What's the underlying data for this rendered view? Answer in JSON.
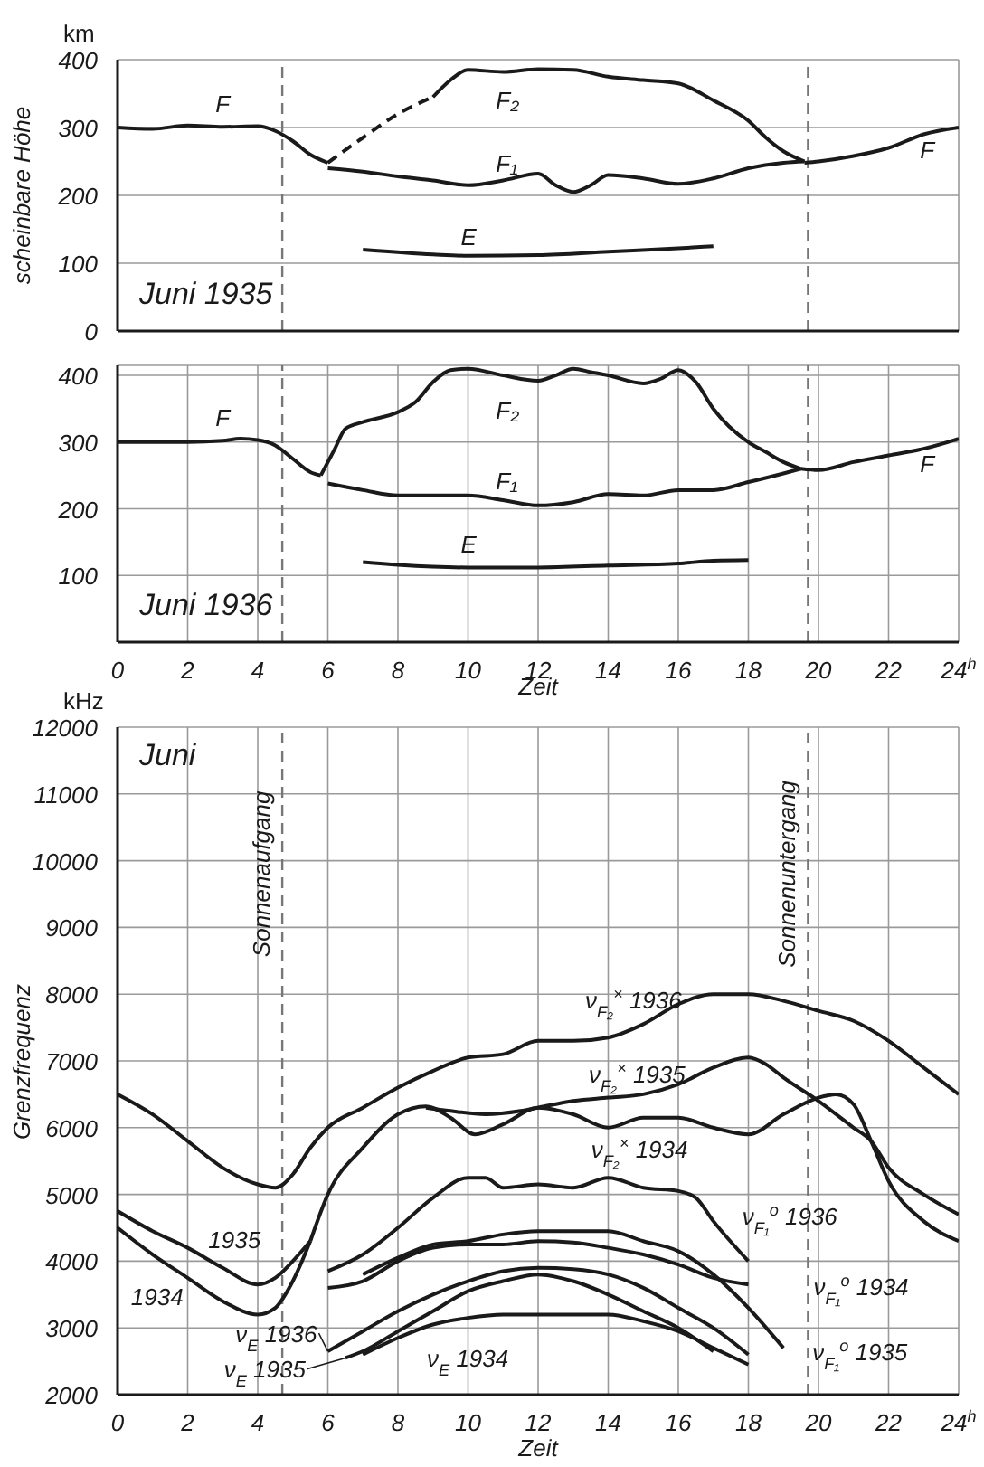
{
  "chart_data": [
    {
      "type": "line",
      "title": "Juni 1935",
      "ylabel": "scheinbare Höhe",
      "xlim": [
        0,
        24
      ],
      "ylim": [
        0,
        400
      ],
      "xticks": [
        0,
        2,
        4,
        6,
        8,
        10,
        12,
        14,
        16,
        18,
        20,
        22,
        24
      ],
      "yticks": [
        0,
        100,
        200,
        300,
        400
      ],
      "tick_labels": "y",
      "grid": true,
      "ref_lines": [
        {
          "axis": "x",
          "value": 4.7,
          "line_style": "dashed"
        },
        {
          "axis": "x",
          "value": 19.7,
          "line_style": "dashed"
        }
      ],
      "series": [
        {
          "color": "#1a1a1a",
          "x": [
            0,
            1,
            2,
            3,
            4,
            4.5,
            5,
            5.5,
            6
          ],
          "values": [
            300,
            298,
            303,
            301,
            302,
            295,
            280,
            260,
            248
          ]
        },
        {
          "color": "#1a1a1a",
          "line_style": "dashed",
          "x": [
            6,
            7,
            8,
            9
          ],
          "values": [
            248,
            285,
            320,
            345
          ]
        },
        {
          "color": "#1a1a1a",
          "x": [
            9,
            9.5,
            10,
            11,
            12,
            13,
            14,
            15,
            16,
            17,
            18,
            18.5,
            19,
            19.6
          ],
          "values": [
            345,
            370,
            385,
            382,
            386,
            385,
            375,
            370,
            365,
            340,
            310,
            285,
            265,
            250
          ]
        },
        {
          "color": "#1a1a1a",
          "x": [
            19.6,
            20,
            21,
            22,
            23,
            24
          ],
          "values": [
            248,
            250,
            258,
            270,
            290,
            300
          ]
        },
        {
          "color": "#1a1a1a",
          "x": [
            6,
            7,
            8,
            9,
            10,
            11,
            12,
            12.5,
            13,
            13.5,
            14,
            15,
            16,
            17,
            18,
            19,
            19.6
          ],
          "values": [
            240,
            235,
            228,
            222,
            215,
            222,
            232,
            215,
            205,
            215,
            230,
            225,
            217,
            225,
            240,
            248,
            250
          ]
        },
        {
          "color": "#1a1a1a",
          "x": [
            7,
            9,
            10,
            12,
            14,
            16,
            17
          ],
          "values": [
            120,
            113,
            111,
            112,
            117,
            122,
            125
          ]
        }
      ],
      "annotations": [
        "km",
        {
          "text": "F",
          "x": 3,
          "y": 301
        },
        {
          "text": "F₂",
          "x": 11,
          "y": 382
        },
        {
          "text": "F₁",
          "x": 11,
          "y": 222
        },
        {
          "text": "E",
          "x": 10,
          "y": 111
        },
        {
          "text": "F",
          "x": 23,
          "y": 290
        }
      ]
    },
    {
      "type": "line",
      "title": "Juni 1936",
      "xlabel": "Zeit",
      "xlim": [
        0,
        24
      ],
      "ylim": [
        0,
        415
      ],
      "xticks": [
        0,
        2,
        4,
        6,
        8,
        10,
        12,
        14,
        16,
        18,
        20,
        22,
        {
          "value": 24,
          "label": "24$^{h}$"
        }
      ],
      "yticks": [
        100,
        200,
        300,
        400
      ],
      "grid": true,
      "ref_lines": [
        {
          "axis": "x",
          "value": 4.7,
          "line_style": "dashed"
        },
        {
          "axis": "x",
          "value": 19.7,
          "line_style": "dashed"
        }
      ],
      "series": [
        {
          "color": "#1a1a1a",
          "x": [
            0,
            2,
            3,
            3.5,
            4,
            4.5,
            5,
            5.5,
            5.8
          ],
          "values": [
            300,
            300,
            302,
            305,
            303,
            295,
            275,
            255,
            250
          ]
        },
        {
          "color": "#1a1a1a",
          "x": [
            5.8,
            6.2,
            6.5,
            7,
            8,
            8.5,
            9,
            9.5,
            10,
            11,
            12,
            12.5,
            13,
            13.5,
            14,
            15,
            15.5,
            16,
            16.5,
            17,
            18,
            18.5,
            19,
            19.5
          ],
          "values": [
            250,
            290,
            320,
            330,
            345,
            360,
            390,
            408,
            410,
            400,
            392,
            400,
            410,
            405,
            400,
            388,
            395,
            408,
            390,
            350,
            300,
            285,
            270,
            260
          ]
        },
        {
          "color": "#1a1a1a",
          "x": [
            19.5,
            20,
            21,
            22,
            23,
            24
          ],
          "values": [
            260,
            258,
            270,
            280,
            290,
            305
          ]
        },
        {
          "color": "#1a1a1a",
          "x": [
            6,
            7,
            8,
            9,
            10,
            11,
            12,
            13,
            14,
            15,
            16,
            17,
            18,
            19,
            19.5
          ],
          "values": [
            238,
            228,
            220,
            220,
            220,
            213,
            205,
            210,
            222,
            220,
            228,
            228,
            240,
            253,
            260
          ]
        },
        {
          "color": "#1a1a1a",
          "x": [
            7,
            8,
            10,
            12,
            14,
            16,
            17,
            18
          ],
          "values": [
            120,
            116,
            112,
            112,
            115,
            118,
            122,
            123
          ]
        }
      ],
      "annotations": [
        {
          "text": "F",
          "x": 3,
          "y": 302
        },
        {
          "text": "F₂",
          "x": 11,
          "y": 400
        },
        {
          "text": "F₁",
          "x": 11,
          "y": 213
        },
        {
          "text": "E",
          "x": 10,
          "y": 112
        },
        {
          "text": "F",
          "x": 23,
          "y": 290
        }
      ]
    },
    {
      "type": "line",
      "title": "Juni",
      "xlabel": "Zeit",
      "ylabel": "Grenzfrequenz",
      "xlim": [
        0,
        24
      ],
      "ylim": [
        2000,
        12000
      ],
      "xticks": [
        0,
        2,
        4,
        6,
        8,
        10,
        12,
        14,
        16,
        18,
        20,
        22,
        {
          "value": 24,
          "label": "24$^{h}$"
        }
      ],
      "yticks": [
        2000,
        3000,
        4000,
        5000,
        6000,
        7000,
        8000,
        9000,
        10000,
        11000,
        12000
      ],
      "grid": true,
      "ref_lines": [
        {
          "axis": "x",
          "value": 4.7,
          "label": "Sonnenaufgang",
          "line_style": "dashed"
        },
        {
          "axis": "x",
          "value": 19.7,
          "label": "Sonnenuntergang",
          "line_style": "dashed"
        }
      ],
      "series": [
        {
          "color": "#1a1a1a",
          "x": [
            0,
            1,
            2,
            3,
            4,
            4.5,
            5,
            5.5,
            6,
            7,
            8,
            9,
            10,
            11,
            12,
            13,
            14,
            15,
            16,
            17,
            18,
            19,
            20,
            21,
            22,
            23,
            24
          ],
          "values": [
            6500,
            6200,
            5800,
            5400,
            5150,
            5100,
            5300,
            5700,
            6000,
            6300,
            6600,
            6850,
            7050,
            7100,
            7300,
            7300,
            7350,
            7550,
            7850,
            8000,
            8000,
            7900,
            7750,
            7600,
            7300,
            6900,
            6500
          ]
        },
        {
          "color": "#1a1a1a",
          "x": [
            0,
            1,
            2,
            3,
            4,
            4.5,
            5,
            5.5
          ],
          "values": [
            4750,
            4450,
            4200,
            3900,
            3650,
            3750,
            4000,
            4300
          ]
        },
        {
          "color": "#1a1a1a",
          "x": [
            0,
            1,
            2,
            3,
            4,
            4.5,
            5,
            5.5
          ],
          "values": [
            4500,
            4100,
            3750,
            3400,
            3200,
            3300,
            3700,
            4300
          ]
        },
        {
          "color": "#1a1a1a",
          "x": [
            5.5,
            6,
            7,
            8,
            8.8,
            9.5,
            10.2,
            11,
            12,
            13,
            14,
            15,
            16,
            17,
            18,
            19,
            20,
            20.5,
            21,
            21.5,
            22,
            23,
            24
          ],
          "values": [
            4300,
            5000,
            5700,
            6200,
            6320,
            6150,
            5900,
            6050,
            6300,
            6200,
            6000,
            6150,
            6150,
            6000,
            5900,
            6200,
            6450,
            6500,
            6350,
            5800,
            5200,
            4600,
            4300
          ]
        },
        {
          "color": "#1a1a1a",
          "x": [
            8.8,
            9.5,
            10.5,
            11.5,
            12,
            13,
            14,
            15,
            16,
            17,
            18,
            18.5,
            19,
            20,
            21,
            21.5,
            22,
            23,
            24
          ],
          "values": [
            6300,
            6250,
            6200,
            6250,
            6300,
            6400,
            6450,
            6500,
            6650,
            6900,
            7050,
            6950,
            6750,
            6400,
            6000,
            5800,
            5400,
            5000,
            4700
          ]
        },
        {
          "color": "#1a1a1a",
          "x": [
            6,
            7,
            8,
            9,
            10,
            10.5,
            11,
            12,
            13,
            14,
            15,
            16,
            16.5,
            17,
            18
          ],
          "values": [
            3850,
            4100,
            4500,
            4950,
            5250,
            5250,
            5100,
            5150,
            5100,
            5250,
            5100,
            5050,
            4950,
            4600,
            4000
          ]
        },
        {
          "color": "#1a1a1a",
          "x": [
            6,
            7,
            8,
            9,
            10,
            11,
            12,
            13,
            14,
            15,
            16,
            17,
            18
          ],
          "values": [
            3600,
            3700,
            4000,
            4200,
            4250,
            4250,
            4300,
            4280,
            4200,
            4100,
            3950,
            3750,
            3650
          ]
        },
        {
          "color": "#1a1a1a",
          "x": [
            7,
            8,
            9,
            10,
            11,
            12,
            13,
            14,
            15,
            16,
            17,
            18,
            19
          ],
          "values": [
            3800,
            4050,
            4250,
            4300,
            4400,
            4450,
            4450,
            4450,
            4300,
            4150,
            3800,
            3300,
            2700
          ]
        },
        {
          "color": "#1a1a1a",
          "x": [
            6,
            7,
            8,
            9,
            10,
            11,
            12,
            13,
            14,
            15,
            16,
            17,
            18
          ],
          "values": [
            2650,
            2950,
            3250,
            3500,
            3700,
            3850,
            3900,
            3880,
            3800,
            3600,
            3300,
            3000,
            2600
          ]
        },
        {
          "color": "#1a1a1a",
          "x": [
            6.5,
            7,
            8,
            9,
            10,
            11,
            12,
            13,
            14,
            15,
            16,
            17
          ],
          "values": [
            2550,
            2650,
            2950,
            3250,
            3550,
            3700,
            3800,
            3700,
            3500,
            3250,
            3000,
            2650
          ]
        },
        {
          "color": "#1a1a1a",
          "x": [
            7,
            8,
            9,
            10,
            11,
            12,
            13,
            14,
            15,
            16,
            17,
            18
          ],
          "values": [
            2600,
            2850,
            3050,
            3150,
            3200,
            3200,
            3200,
            3200,
            3100,
            2950,
            2700,
            2450
          ]
        }
      ],
      "annotations": [
        "kHz",
        {
          "text": "ν$_{F₂}$$^{×}$ 1936",
          "x": 12,
          "y": 7300
        },
        {
          "text": "ν$_{F₂}$$^{×}$ 1935",
          "x": 12,
          "y": 6300
        },
        {
          "text": "ν$_{F₂}$$^{×}$ 1934",
          "x": 13,
          "y": 6200
        },
        {
          "text": "ν$_{F₁}$$^{o}$ 1936",
          "x": 17,
          "y": 4600
        },
        {
          "text": "ν$_{F₁}$$^{o}$ 1934",
          "x": 18,
          "y": 3650
        },
        {
          "text": "ν$_{F₁}$$^{o}$ 1935",
          "x": 19,
          "y": 2700
        },
        {
          "text": "1935",
          "x": 3,
          "y": 3900
        },
        {
          "text": "1934",
          "x": 1,
          "y": 4100
        },
        {
          "text": "ν$_{E}$ 1936",
          "x": 6,
          "y": 2650
        },
        {
          "text": "ν$_{E}$ 1935",
          "x": 6.5,
          "y": 2550
        },
        {
          "text": "ν$_{E}$ 1934",
          "x": 8,
          "y": 2850
        }
      ]
    }
  ]
}
